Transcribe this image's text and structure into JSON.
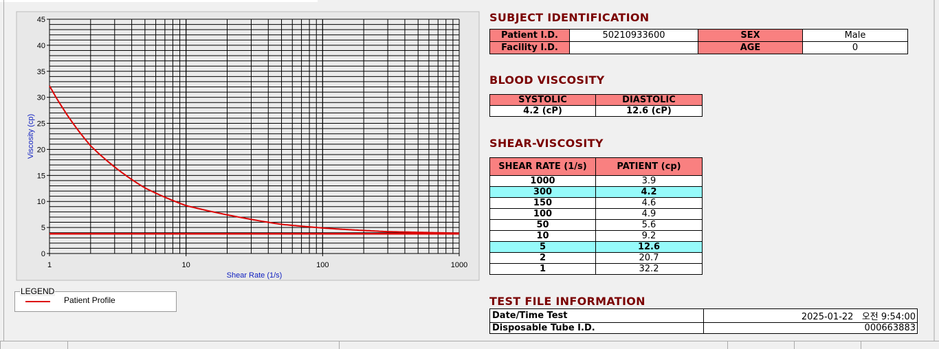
{
  "chart_data": {
    "type": "line",
    "xlabel": "Shear Rate (1/s)",
    "ylabel": "Viscosity (cp)",
    "x_scale": "log",
    "xlim": [
      1,
      1000
    ],
    "ylim": [
      0,
      45
    ],
    "x_ticks": [
      "1",
      "10",
      "100",
      "1000"
    ],
    "y_ticks": [
      "0",
      "5",
      "10",
      "15",
      "20",
      "25",
      "30",
      "35",
      "40",
      "45"
    ],
    "grid": true,
    "series": [
      {
        "name": "Patient Profile",
        "color": "#dd0000",
        "x": [
          1,
          2,
          5,
          10,
          50,
          100,
          150,
          300,
          1000
        ],
        "y": [
          32.2,
          20.7,
          12.6,
          9.2,
          5.6,
          4.9,
          4.6,
          4.2,
          3.9
        ]
      }
    ],
    "reference_line_y": 3.8,
    "legend_title": "LEGEND"
  },
  "subject": {
    "title": "SUBJECT IDENTIFICATION",
    "patient_id_label": "Patient I.D.",
    "patient_id": "50210933600",
    "sex_label": "SEX",
    "sex": "Male",
    "facility_id_label": "Facility I.D.",
    "facility_id": "",
    "age_label": "AGE",
    "age": "0"
  },
  "blood": {
    "title": "BLOOD VISCOSITY",
    "systolic_label": "SYSTOLIC",
    "diastolic_label": "DIASTOLIC",
    "systolic": "4.2 (cP)",
    "diastolic": "12.6 (cP)"
  },
  "shear": {
    "title": "SHEAR-VISCOSITY",
    "col1": "SHEAR RATE (1/s)",
    "col2": "PATIENT (cp)",
    "rows": [
      [
        "1000",
        "3.9",
        false
      ],
      [
        "300",
        "4.2",
        true
      ],
      [
        "150",
        "4.6",
        false
      ],
      [
        "100",
        "4.9",
        false
      ],
      [
        "50",
        "5.6",
        false
      ],
      [
        "10",
        "9.2",
        false
      ],
      [
        "5",
        "12.6",
        true
      ],
      [
        "2",
        "20.7",
        false
      ],
      [
        "1",
        "32.2",
        false
      ]
    ]
  },
  "testfile": {
    "title": "TEST FILE INFORMATION",
    "date_label": "Date/Time Test",
    "date": "2025-01-22   오전 9:54:00",
    "tube_label": "Disposable Tube I.D.",
    "tube": "000663883"
  }
}
